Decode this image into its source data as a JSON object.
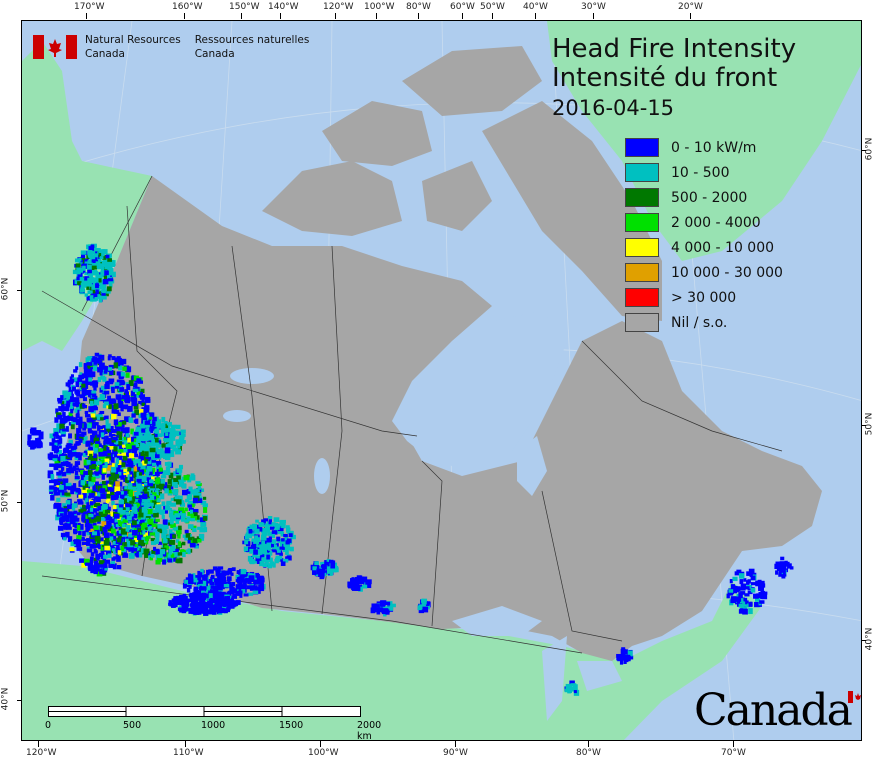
{
  "header": {
    "org_en_line1": "Natural Resources",
    "org_en_line2": "Canada",
    "org_fr_line1": "Ressources naturelles",
    "org_fr_line2": "Canada"
  },
  "title": {
    "en": "Head Fire Intensity",
    "fr": "Intensité du front",
    "date": "2016-04-15"
  },
  "legend": [
    {
      "label": "0 - 10 kW/m",
      "color": "#0000ff"
    },
    {
      "label": "10 - 500",
      "color": "#00c0c0"
    },
    {
      "label": "500 - 2000",
      "color": "#007800"
    },
    {
      "label": "2 000 - 4000",
      "color": "#00e000"
    },
    {
      "label": "4 000 - 10 000",
      "color": "#ffff00"
    },
    {
      "label": "10 000 - 30 000",
      "color": "#e0a000"
    },
    {
      "label": "> 30 000",
      "color": "#ff0000"
    },
    {
      "label": "Nil / s.o.",
      "color": "#a6a6a6"
    }
  ],
  "axes": {
    "top": [
      "170°W",
      "160°W",
      "150°W",
      "140°W",
      "120°W",
      "100°W",
      "80°W",
      "60°W",
      "50°W",
      "40°W",
      "30°W",
      "20°W"
    ],
    "bottom": [
      "120°W",
      "110°W",
      "100°W",
      "90°W",
      "80°W",
      "70°W"
    ],
    "left": [
      "60°N",
      "50°N",
      "40°N"
    ],
    "right": [
      "60°N",
      "50°N",
      "40°N"
    ]
  },
  "scale_bar": {
    "labels": [
      "0",
      "500",
      "1000",
      "1500",
      "2000 km"
    ]
  },
  "wordmark": "Canada",
  "colors": {
    "ocean": "#afcdee",
    "foreign_land": "#98e2b2",
    "canada_land": "#a6a6a6"
  }
}
